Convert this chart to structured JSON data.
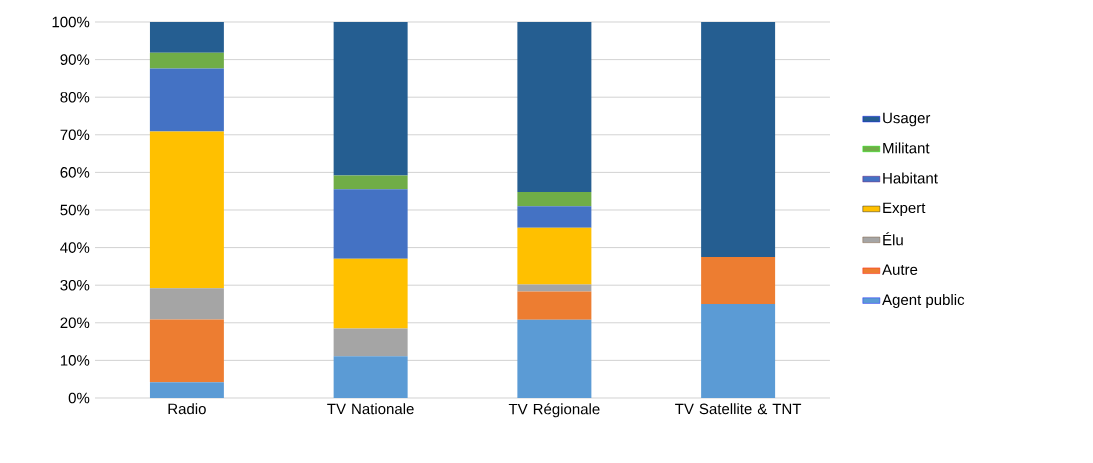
{
  "chart_data": {
    "type": "bar",
    "stacked": true,
    "categories": [
      "Radio",
      "TV Nationale",
      "TV Régionale",
      "TV Satellite & TNT"
    ],
    "series": [
      {
        "name": "Agent public",
        "color": "#5b9bd5",
        "values": [
          4.2,
          11.1,
          20.8,
          25
        ]
      },
      {
        "name": "Autre",
        "color": "#ed7d31",
        "values": [
          16.7,
          0,
          7.5,
          12.5
        ]
      },
      {
        "name": "Élu",
        "color": "#a5a5a5",
        "values": [
          8.3,
          7.4,
          1.9,
          0
        ]
      },
      {
        "name": "Expert",
        "color": "#ffc000",
        "values": [
          41.7,
          18.5,
          15.1,
          0
        ]
      },
      {
        "name": "Habitant",
        "color": "#4472c4",
        "values": [
          16.7,
          18.5,
          5.7,
          0
        ]
      },
      {
        "name": "Militant",
        "color": "#70ad47",
        "values": [
          4.2,
          3.7,
          3.8,
          0
        ]
      },
      {
        "name": "Usager",
        "color": "#255e91",
        "values": [
          8.2,
          40.8,
          45.2,
          62.5
        ]
      }
    ],
    "ylim": [
      0,
      100
    ],
    "yticks": [
      {
        "value": 0,
        "label": "0%"
      },
      {
        "value": 10,
        "label": "10%"
      },
      {
        "value": 20,
        "label": "20%"
      },
      {
        "value": 30,
        "label": "30%"
      },
      {
        "value": 40,
        "label": "40%"
      },
      {
        "value": 50,
        "label": "50%"
      },
      {
        "value": 60,
        "label": "60%"
      },
      {
        "value": 70,
        "label": "70%"
      },
      {
        "value": 80,
        "label": "80%"
      },
      {
        "value": 90,
        "label": "90%"
      },
      {
        "value": 100,
        "label": "100%"
      }
    ],
    "grid": "y",
    "legend": "right"
  }
}
